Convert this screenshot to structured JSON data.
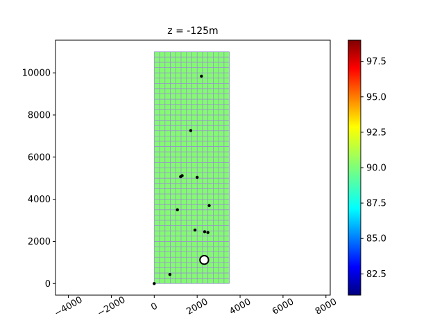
{
  "chart_data": {
    "type": "heatmap",
    "title": "z = -125m",
    "xlabel": "",
    "ylabel": "",
    "xlim": [
      -4600,
      8200
    ],
    "ylim": [
      -550,
      11550
    ],
    "xticks": [
      -4000,
      -2000,
      0,
      2000,
      4000,
      6000,
      8000
    ],
    "xtick_labels": [
      "−4000",
      "−2000",
      "0",
      "2000",
      "4000",
      "6000",
      "8000"
    ],
    "yticks": [
      0,
      2000,
      4000,
      6000,
      8000,
      10000
    ],
    "ytick_labels": [
      "0",
      "2000",
      "4000",
      "6000",
      "8000",
      "10000"
    ],
    "grid": false,
    "grid_region": {
      "x_range": [
        0,
        3500
      ],
      "y_range": [
        0,
        11000
      ],
      "nx": 14,
      "ny": 44,
      "value": 90,
      "fill_color": "#84fa73",
      "line_color": "#9a8fd0"
    },
    "wells": [
      {
        "x": 0,
        "y": 0
      },
      {
        "x": 730,
        "y": 430
      },
      {
        "x": 1080,
        "y": 3500
      },
      {
        "x": 1230,
        "y": 5070
      },
      {
        "x": 1300,
        "y": 5120
      },
      {
        "x": 1700,
        "y": 7260
      },
      {
        "x": 1900,
        "y": 2540
      },
      {
        "x": 2000,
        "y": 5040
      },
      {
        "x": 2200,
        "y": 9840
      },
      {
        "x": 2350,
        "y": 2460
      },
      {
        "x": 2500,
        "y": 2420
      },
      {
        "x": 2560,
        "y": 3700
      }
    ],
    "highlight_well": {
      "x": 2330,
      "y": 1120
    },
    "colorbar": {
      "colormap": "jet",
      "vmin": 81,
      "vmax": 99,
      "ticks": [
        82.5,
        85.0,
        87.5,
        90.0,
        92.5,
        95.0,
        97.5
      ],
      "tick_labels": [
        "82.5",
        "85.0",
        "87.5",
        "90.0",
        "92.5",
        "95.0",
        "97.5"
      ]
    }
  }
}
